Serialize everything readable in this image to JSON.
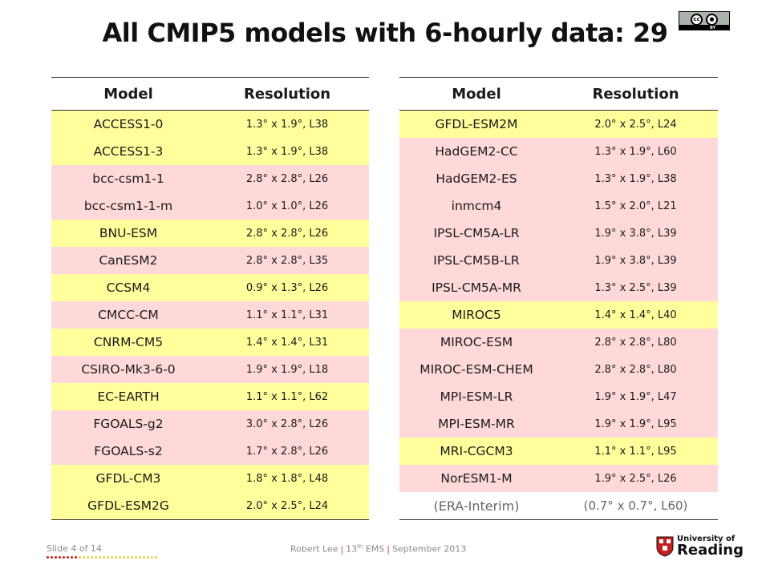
{
  "title": "All CMIP5 models with 6-hourly data: 29",
  "license_badge": {
    "label": "BY",
    "icons": [
      "cc-icon",
      "attribution-person-icon"
    ]
  },
  "tables": {
    "left": {
      "headers": {
        "model": "Model",
        "resolution": "Resolution"
      },
      "rows": [
        {
          "model": "ACCESS1-0",
          "res": "1.3° x 1.9°, L38",
          "color": "#ffff9c"
        },
        {
          "model": "ACCESS1-3",
          "res": "1.3° x 1.9°, L38",
          "color": "#ffff9c"
        },
        {
          "model": "bcc-csm1-1",
          "res": "2.8° x 2.8°, L26",
          "color": "#ffd9d9"
        },
        {
          "model": "bcc-csm1-1-m",
          "res": "1.0° x 1.0°, L26",
          "color": "#ffd9d9"
        },
        {
          "model": "BNU-ESM",
          "res": "2.8° x 2.8°, L26",
          "color": "#ffff9c"
        },
        {
          "model": "CanESM2",
          "res": "2.8° x 2.8°, L35",
          "color": "#ffd9d9"
        },
        {
          "model": "CCSM4",
          "res": "0.9° x 1.3°, L26",
          "color": "#ffff9c"
        },
        {
          "model": "CMCC-CM",
          "res": "1.1° x 1.1°, L31",
          "color": "#ffd9d9"
        },
        {
          "model": "CNRM-CM5",
          "res": "1.4° x 1.4°, L31",
          "color": "#ffff9c"
        },
        {
          "model": "CSIRO-Mk3-6-0",
          "res": "1.9° x 1.9°, L18",
          "color": "#ffd9d9"
        },
        {
          "model": "EC-EARTH",
          "res": "1.1° x 1.1°, L62",
          "color": "#ffff9c"
        },
        {
          "model": "FGOALS-g2",
          "res": "3.0° x 2.8°, L26",
          "color": "#ffd9d9"
        },
        {
          "model": "FGOALS-s2",
          "res": "1.7° x 2.8°, L26",
          "color": "#ffd9d9"
        },
        {
          "model": "GFDL-CM3",
          "res": "1.8° x 1.8°, L48",
          "color": "#ffff9c"
        },
        {
          "model": "GFDL-ESM2G",
          "res": "2.0° x 2.5°, L24",
          "color": "#ffff9c"
        }
      ]
    },
    "right": {
      "headers": {
        "model": "Model",
        "resolution": "Resolution"
      },
      "rows": [
        {
          "model": "GFDL-ESM2M",
          "res": "2.0° x 2.5°, L24",
          "color": "#ffff9c"
        },
        {
          "model": "HadGEM2-CC",
          "res": "1.3° x 1.9°, L60",
          "color": "#ffd9d9"
        },
        {
          "model": "HadGEM2-ES",
          "res": "1.3° x 1.9°, L38",
          "color": "#ffd9d9"
        },
        {
          "model": "inmcm4",
          "res": "1.5° x 2.0°, L21",
          "color": "#ffd9d9"
        },
        {
          "model": "IPSL-CM5A-LR",
          "res": "1.9° x 3.8°, L39",
          "color": "#ffd9d9"
        },
        {
          "model": "IPSL-CM5B-LR",
          "res": "1.9° x 3.8°, L39",
          "color": "#ffd9d9"
        },
        {
          "model": "IPSL-CM5A-MR",
          "res": "1.3° x 2.5°, L39",
          "color": "#ffd9d9"
        },
        {
          "model": "MIROC5",
          "res": "1.4° x 1.4°, L40",
          "color": "#ffff9c"
        },
        {
          "model": "MIROC-ESM",
          "res": "2.8° x 2.8°, L80",
          "color": "#ffd9d9"
        },
        {
          "model": "MIROC-ESM-CHEM",
          "res": "2.8° x 2.8°, L80",
          "color": "#ffd9d9"
        },
        {
          "model": "MPI-ESM-LR",
          "res": "1.9° x 1.9°, L47",
          "color": "#ffd9d9"
        },
        {
          "model": "MPI-ESM-MR",
          "res": "1.9° x 1.9°, L95",
          "color": "#ffd9d9"
        },
        {
          "model": "MRI-CGCM3",
          "res": "1.1° x 1.1°, L95",
          "color": "#ffff9c"
        },
        {
          "model": "NorESM1-M",
          "res": "1.9° x 2.5°, L26",
          "color": "#ffd9d9"
        },
        {
          "model": "(ERA-Interim)",
          "res": "(0.7° x 0.7°, L60)",
          "color": "#ffffff"
        }
      ]
    }
  },
  "footer": {
    "slide_label": "Slide 4 of 14",
    "progress": {
      "current": 4,
      "total": 14
    },
    "author": "Robert Lee",
    "separator": "|",
    "event_prefix": "13",
    "event_sup": "th",
    "event_suffix": " EMS",
    "date": "September 2013",
    "logo": {
      "line1": "University of",
      "line2": "Reading"
    }
  },
  "colors": {
    "yellow_row": "#ffff9c",
    "pink_row": "#ffd9d9",
    "accent": "#c0201f"
  }
}
